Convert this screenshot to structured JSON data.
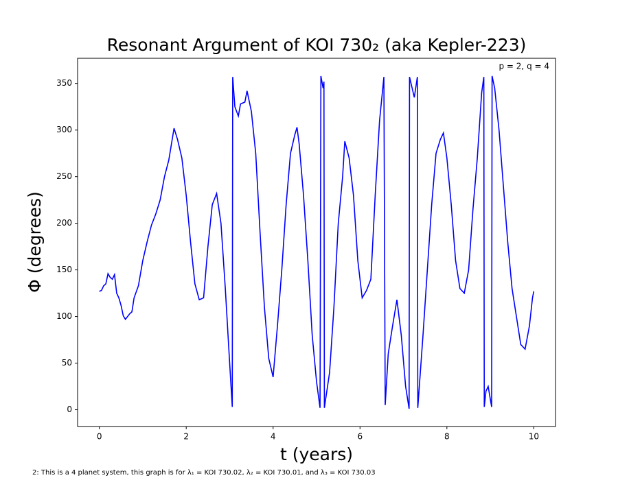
{
  "chart_data": {
    "type": "line",
    "title": "Resonant Argument of KOI 730₂ (aka Kepler-223)",
    "x_label": "t (years)",
    "y_label": "Φ (degrees)",
    "annotation": "p = 2, q = 4",
    "footnote": "2: This is a 4 planet system, this graph is for λ₁ = KOI 730.02, λ₂ = KOI 730.01, and λ₃ = KOI 730.03",
    "x": [
      0,
      0.05,
      0.1,
      0.15,
      0.2,
      0.25,
      0.3,
      0.35,
      0.4,
      0.45,
      0.5,
      0.55,
      0.6,
      0.65,
      0.7,
      0.75,
      0.8,
      0.9,
      1.0,
      1.1,
      1.2,
      1.3,
      1.4,
      1.5,
      1.6,
      1.72,
      1.8,
      1.9,
      2.0,
      2.1,
      2.2,
      2.3,
      2.4,
      2.5,
      2.6,
      2.7,
      2.8,
      2.9,
      3.0,
      3.06,
      3.07,
      3.12,
      3.2,
      3.25,
      3.35,
      3.4,
      3.5,
      3.6,
      3.7,
      3.8,
      3.9,
      4.0,
      4.1,
      4.2,
      4.3,
      4.4,
      4.5,
      4.55,
      4.6,
      4.7,
      4.8,
      4.9,
      5.0,
      5.08,
      5.1,
      5.15,
      5.17,
      5.18,
      5.3,
      5.4,
      5.5,
      5.6,
      5.65,
      5.75,
      5.85,
      5.95,
      6.05,
      6.15,
      6.25,
      6.35,
      6.45,
      6.55,
      6.58,
      6.65,
      6.75,
      6.85,
      6.95,
      7.05,
      7.13,
      7.14,
      7.2,
      7.25,
      7.32,
      7.33,
      7.45,
      7.55,
      7.65,
      7.75,
      7.85,
      7.92,
      8.0,
      8.1,
      8.2,
      8.3,
      8.4,
      8.5,
      8.6,
      8.7,
      8.8,
      8.85,
      8.86,
      8.9,
      8.95,
      9.03,
      9.04,
      9.1,
      9.2,
      9.3,
      9.4,
      9.5,
      9.6,
      9.7,
      9.8,
      9.9,
      9.97,
      10.0
    ],
    "series": [
      {
        "name": "Φ",
        "color": "#0000ff",
        "values": [
          127,
          128,
          133,
          135,
          146,
          142,
          140,
          145,
          125,
          120,
          112,
          101,
          97,
          100,
          103,
          105,
          120,
          133,
          160,
          180,
          198,
          210,
          225,
          250,
          268,
          302,
          290,
          270,
          230,
          180,
          135,
          118,
          120,
          175,
          220,
          232,
          200,
          130,
          50,
          3,
          357,
          325,
          315,
          328,
          330,
          342,
          320,
          275,
          190,
          110,
          55,
          35,
          90,
          150,
          220,
          275,
          295,
          303,
          285,
          230,
          160,
          80,
          30,
          2,
          358,
          345,
          352,
          2,
          40,
          110,
          200,
          250,
          288,
          270,
          230,
          160,
          120,
          128,
          140,
          230,
          310,
          357,
          5,
          60,
          90,
          118,
          80,
          25,
          1,
          357,
          345,
          335,
          357,
          2,
          80,
          150,
          220,
          275,
          290,
          297,
          270,
          220,
          160,
          130,
          125,
          150,
          215,
          270,
          340,
          357,
          3,
          20,
          25,
          3,
          358,
          345,
          300,
          240,
          180,
          130,
          100,
          70,
          65,
          90,
          120,
          127
        ]
      }
    ],
    "xlim": [
      -0.5,
      10.5
    ],
    "ylim": [
      -18,
      377
    ],
    "xticks": [
      0,
      2,
      4,
      6,
      8,
      10
    ],
    "yticks": [
      0,
      50,
      100,
      150,
      200,
      250,
      300,
      350
    ]
  }
}
